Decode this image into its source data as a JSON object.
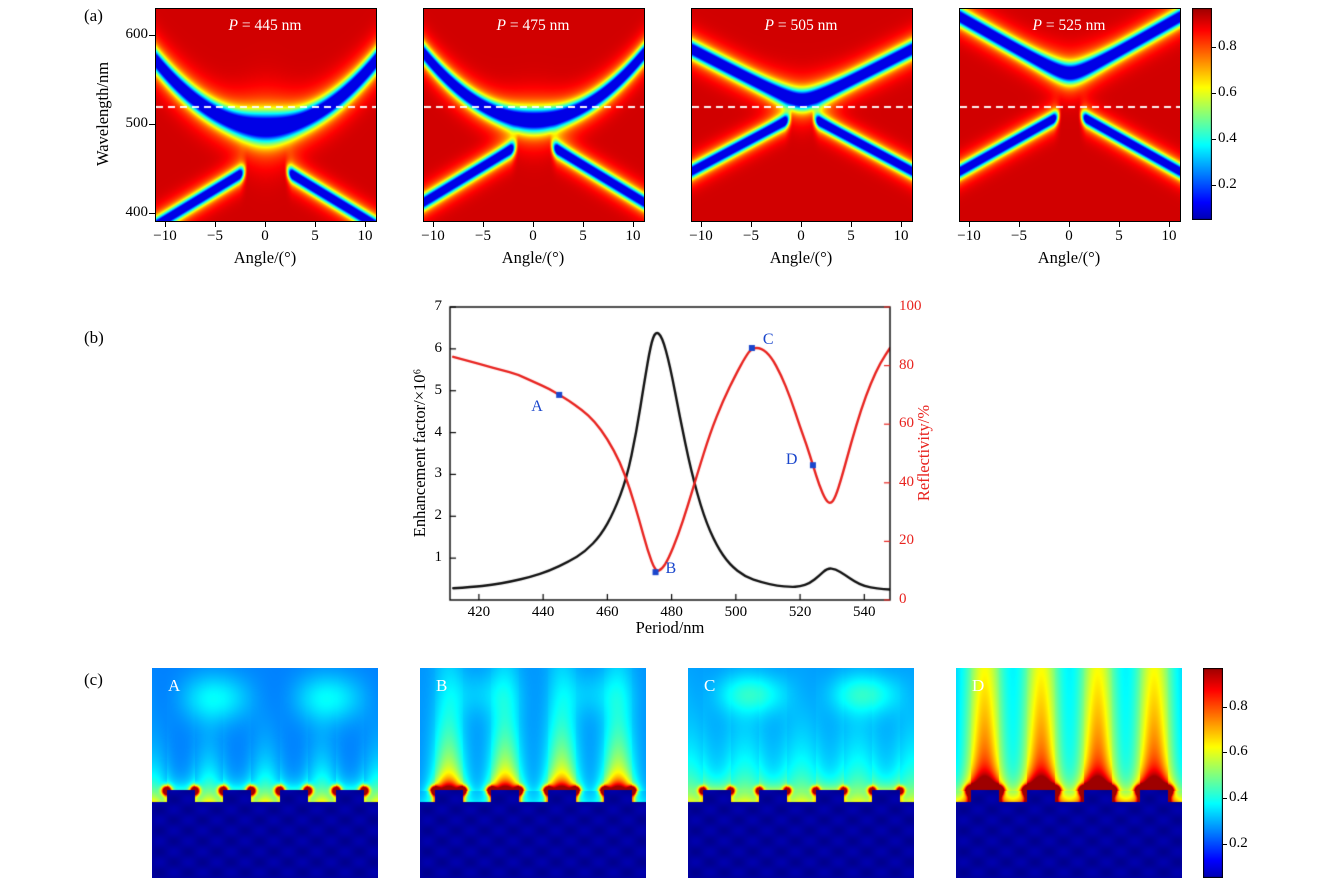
{
  "chart_data": [
    {
      "type": "heatmap",
      "panel": "(a)",
      "description": "Angle-resolved reflectivity maps for four grating periods",
      "xlabel": "Angle/(°)",
      "ylabel": "Wavelength/nm",
      "xlim": [
        -11,
        11
      ],
      "ylim": [
        392,
        630
      ],
      "xticks": {
        "values": [
          -10,
          -5,
          0,
          5,
          10
        ],
        "labels": [
          "−10",
          "−5",
          "0",
          "5",
          "10"
        ]
      },
      "yticks": {
        "values": [
          400,
          500,
          600
        ],
        "labels": [
          "400",
          "500",
          "600"
        ]
      },
      "dashed_line_nm": 520,
      "background_reflectivity": 0.92,
      "subplots": [
        {
          "title": "P = 445 nm",
          "period_nm": 445,
          "upper_band": {
            "center_nm": 497,
            "quad": 0.62,
            "vslope": 0,
            "vsoft": 1.0,
            "width_nm": 12,
            "widen_center": 5,
            "depth": 0.85
          },
          "lower_band": {
            "center_nm": 462,
            "slope_nm_per_deg": 6.8,
            "width_nm": 8,
            "gap_half_deg": 1.8,
            "depth": 0.82
          }
        },
        {
          "title": "P = 475 nm",
          "period_nm": 475,
          "upper_band": {
            "center_nm": 505,
            "quad": 0.62,
            "vslope": 0,
            "vsoft": 1.0,
            "width_nm": 10,
            "widen_center": 3,
            "depth": 0.85
          },
          "lower_band": {
            "center_nm": 488,
            "slope_nm_per_deg": 6.8,
            "width_nm": 8,
            "gap_half_deg": 1.5,
            "depth": 0.82
          }
        },
        {
          "title": "P = 505 nm",
          "period_nm": 505,
          "upper_band": {
            "center_nm": 528,
            "quad": 0,
            "vslope": 5.8,
            "vsoft": 1.3,
            "width_nm": 9,
            "widen_center": 2,
            "depth": 0.85
          },
          "lower_band": {
            "center_nm": 514,
            "slope_nm_per_deg": 6.0,
            "width_nm": 7.5,
            "gap_half_deg": 0.9,
            "depth": 0.82
          }
        },
        {
          "title": "P = 525 nm",
          "period_nm": 525,
          "upper_band": {
            "center_nm": 558,
            "quad": 0,
            "vslope": 6.4,
            "vsoft": 1.2,
            "width_nm": 9,
            "widen_center": 2,
            "depth": 0.85
          },
          "lower_band": {
            "center_nm": 517,
            "slope_nm_per_deg": 6.3,
            "width_nm": 7.5,
            "gap_half_deg": 0.8,
            "depth": 0.82
          }
        }
      ],
      "colorbar": {
        "range": [
          0.05,
          0.97
        ],
        "tick_values": [
          0.8,
          0.6,
          0.4,
          0.2
        ],
        "tick_labels": [
          "0.8",
          "0.6",
          "0.4",
          "0.2"
        ]
      }
    },
    {
      "type": "line",
      "panel": "(b)",
      "xlabel": "Period/nm",
      "ylabel_left": "Enhancement factor/×10⁶",
      "ylabel_right": "Reflectivity/%",
      "xlim": [
        411,
        548
      ],
      "ylim_left": [
        0,
        7
      ],
      "ylim_right": [
        0,
        100
      ],
      "xticks": [
        420,
        440,
        460,
        480,
        500,
        520,
        540
      ],
      "yticks_left": [
        1,
        2,
        3,
        4,
        5,
        6,
        7
      ],
      "yticks_right": [
        0,
        20,
        40,
        60,
        80,
        100
      ],
      "point_color": "#1a46cc",
      "series": [
        {
          "name": "Enhancement factor",
          "color": "#111111",
          "axis": "left",
          "x": [
            412,
            418,
            424,
            430,
            436,
            442,
            448,
            453,
            458,
            462,
            466,
            469,
            471.5,
            473.5,
            475,
            477,
            479.5,
            482.5,
            486,
            490,
            494,
            498,
            503,
            508,
            513,
            517,
            520,
            523,
            526,
            528.5,
            531,
            534,
            537,
            540,
            544,
            548
          ],
          "y": [
            0.28,
            0.31,
            0.36,
            0.44,
            0.55,
            0.7,
            0.92,
            1.15,
            1.55,
            2.1,
            2.9,
            4.0,
            5.2,
            6.1,
            6.42,
            6.3,
            5.6,
            4.4,
            3.1,
            2.0,
            1.3,
            0.85,
            0.55,
            0.42,
            0.34,
            0.31,
            0.32,
            0.4,
            0.58,
            0.76,
            0.74,
            0.6,
            0.44,
            0.33,
            0.27,
            0.25
          ]
        },
        {
          "name": "Reflectivity",
          "color": "#e8231f",
          "axis": "right",
          "x": [
            412,
            417,
            422,
            427,
            432,
            437,
            442,
            445,
            448,
            452,
            456,
            460,
            464,
            467,
            470,
            472.5,
            475,
            477,
            479,
            482,
            485,
            488,
            492,
            496,
            500,
            503,
            505,
            508,
            511,
            514,
            517,
            520,
            522,
            524,
            526,
            528,
            529.5,
            531,
            533,
            536,
            539,
            542,
            545,
            548
          ],
          "y": [
            83,
            81.5,
            80,
            78.5,
            77,
            74.5,
            72,
            70,
            68,
            65,
            61,
            55,
            47,
            38,
            27,
            17,
            9.5,
            10.5,
            14,
            22,
            32,
            43,
            57,
            68,
            77,
            83,
            86,
            86,
            83,
            77,
            69,
            59,
            53,
            46,
            39,
            34,
            32.8,
            35,
            42,
            54,
            65,
            74,
            81,
            86
          ]
        }
      ],
      "points": [
        {
          "label": "A",
          "period_nm": 445,
          "reflectivity_pct": 70
        },
        {
          "label": "B",
          "period_nm": 475,
          "reflectivity_pct": 9.5
        },
        {
          "label": "C",
          "period_nm": 505,
          "reflectivity_pct": 86
        },
        {
          "label": "D",
          "period_nm": 524,
          "reflectivity_pct": 46
        }
      ]
    },
    {
      "type": "heatmap",
      "panel": "(c)",
      "description": "Near-field distribution maps at the points A, B, C, D",
      "subplots": [
        {
          "label": "A",
          "base": 0.25,
          "plume_at": "gap",
          "plume_amp": 0.3,
          "plume_width": 15,
          "plume_height": 30,
          "cap_amp": 0.06,
          "surface_amp": 0.1,
          "surface_len": 9,
          "side_amp": 0.15,
          "hotspot_amp": 0.95,
          "hotspot_r": 3.2,
          "cloud_amp": 0.12,
          "cloud_y": 30,
          "cloud_h": 24
        },
        {
          "label": "B",
          "base": 0.27,
          "plume_at": "bump",
          "plume_amp": 0.42,
          "plume_width": 16,
          "plume_height": 62,
          "cap_amp": 0.52,
          "surface_amp": 0.05,
          "surface_len": 9,
          "side_amp": 0.25,
          "hotspot_amp": 0.85,
          "hotspot_r": 3.0,
          "cloud_amp": 0.05,
          "cloud_y": 26,
          "cloud_h": 22
        },
        {
          "label": "C",
          "base": 0.27,
          "plume_at": "gap",
          "plume_amp": 0.27,
          "plume_width": 22,
          "plume_height": 46,
          "cap_amp": 0.1,
          "surface_amp": 0.08,
          "surface_len": 9,
          "side_amp": 0.15,
          "hotspot_amp": 0.78,
          "hotspot_r": 2.7,
          "cloud_amp": 0.13,
          "cloud_y": 26,
          "cloud_h": 20
        },
        {
          "label": "D",
          "base": 0.32,
          "plume_at": "bump",
          "plume_amp": 0.52,
          "plume_width": 18,
          "plume_height": 220,
          "cap_amp": 0.5,
          "surface_amp": 0.3,
          "surface_len": 13,
          "side_amp": 0.3,
          "hotspot_amp": 0.95,
          "hotspot_r": 3.2,
          "cloud_amp": 0.0,
          "cloud_y": 26,
          "cloud_h": 20
        }
      ],
      "colorbar": {
        "range": [
          0.05,
          0.97
        ],
        "tick_values": [
          0.8,
          0.6,
          0.4,
          0.2
        ],
        "tick_labels": [
          "0.8",
          "0.6",
          "0.4",
          "0.2"
        ]
      }
    }
  ]
}
